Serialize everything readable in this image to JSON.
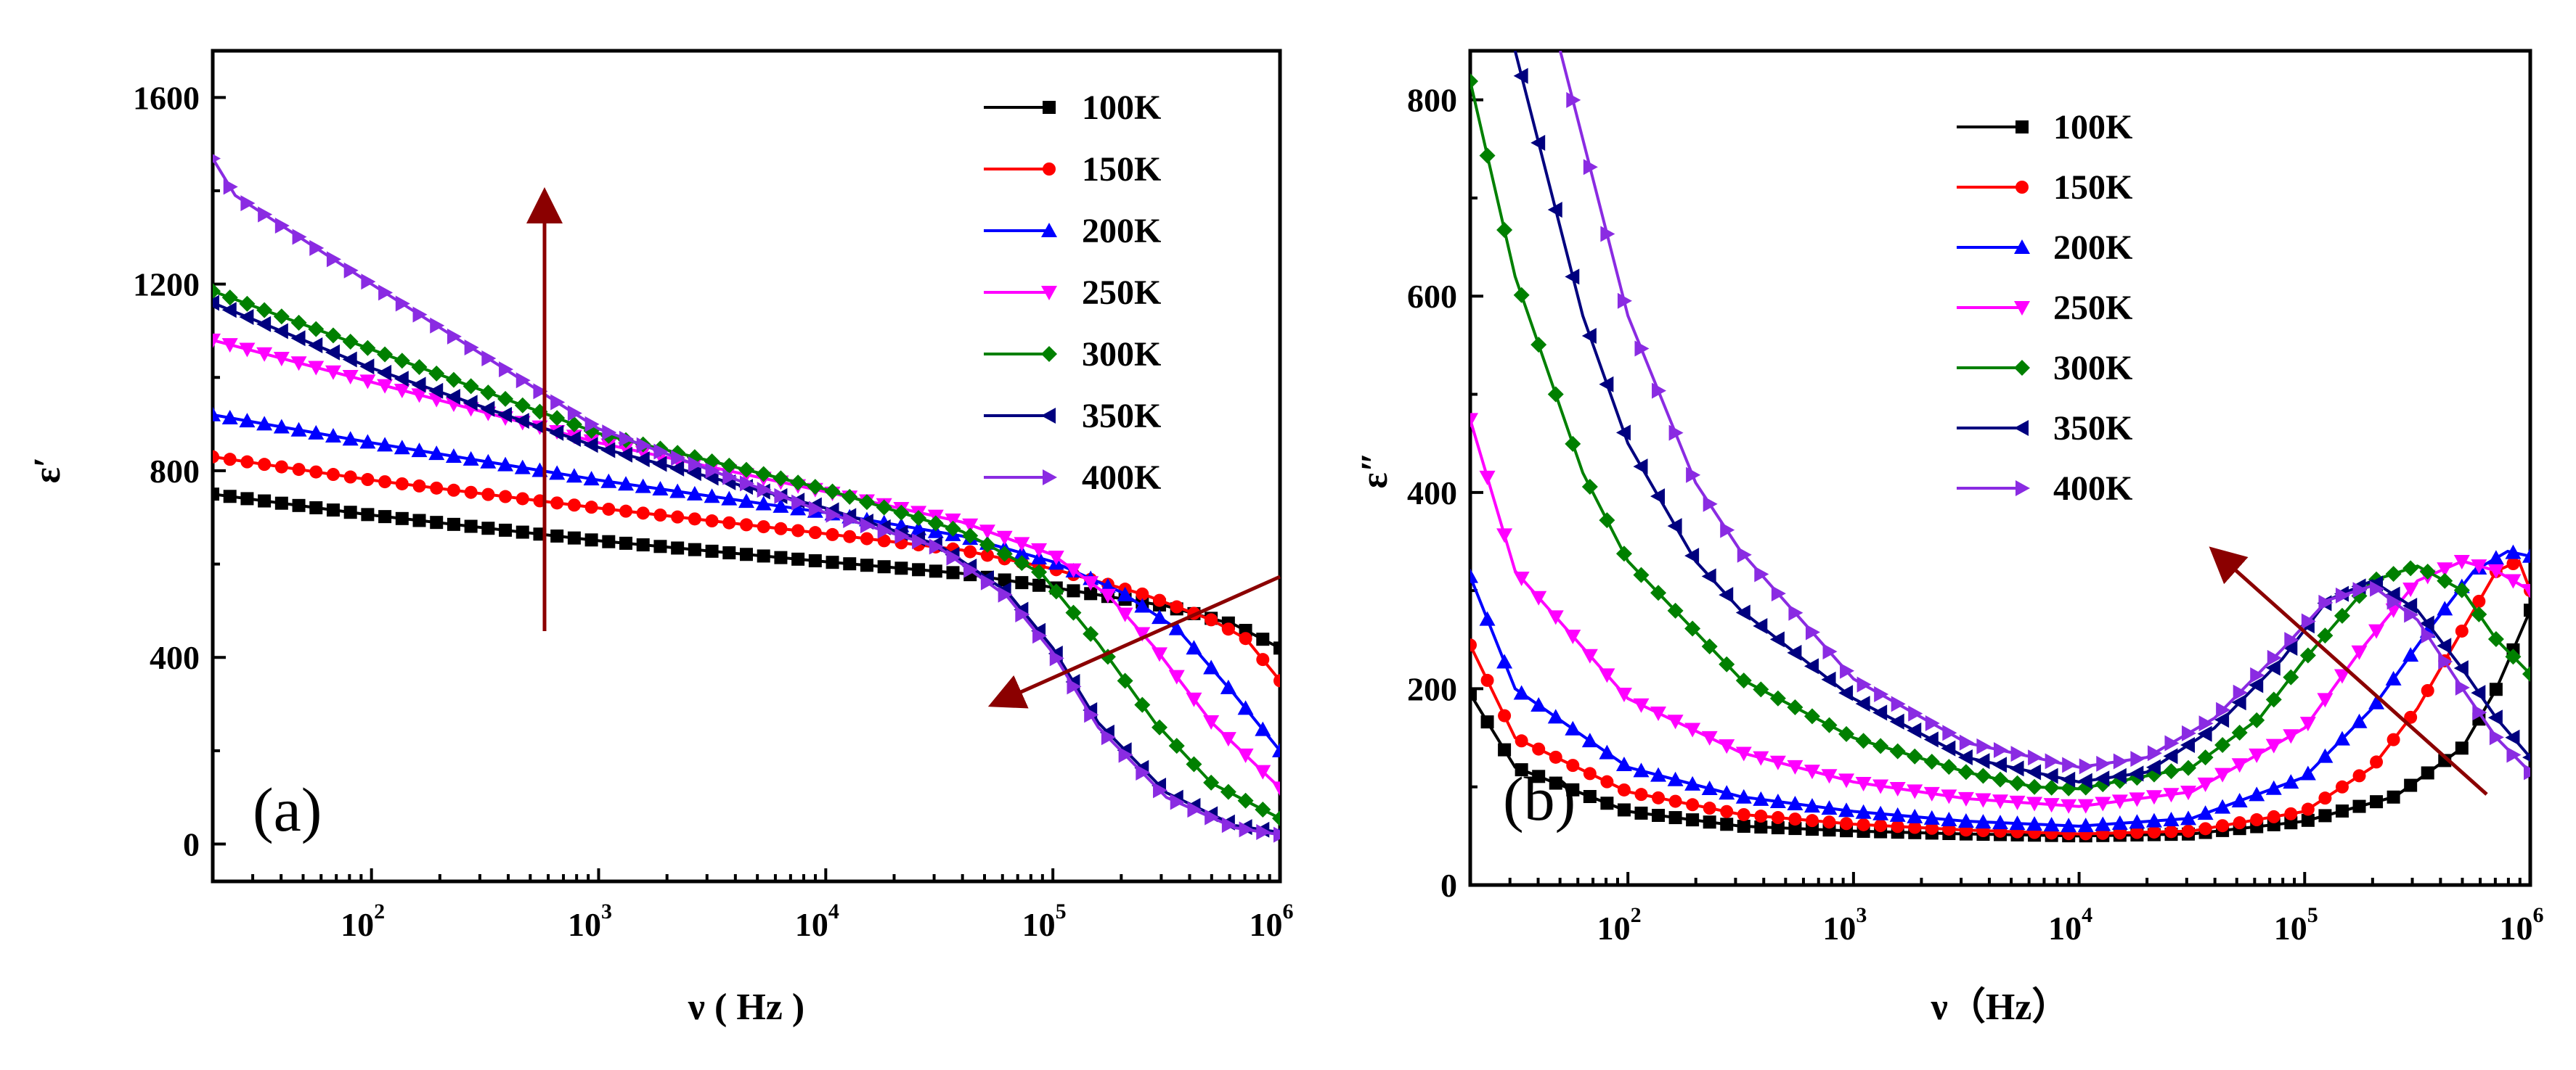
{
  "figure": {
    "panels": [
      "(a)",
      "(b)"
    ]
  },
  "chart_data": [
    {
      "type": "line",
      "panel_label": "(a)",
      "title": "",
      "xlabel": "ν ( Hz )",
      "ylabel": "ε′",
      "xscale": "log",
      "xlim": [
        20,
        1000000
      ],
      "ylim": [
        -80,
        1700
      ],
      "xticks": [
        {
          "base": "10",
          "exp": "2",
          "value": 100
        },
        {
          "base": "10",
          "exp": "3",
          "value": 1000
        },
        {
          "base": "10",
          "exp": "4",
          "value": 10000
        },
        {
          "base": "10",
          "exp": "5",
          "value": 100000
        },
        {
          "base": "10",
          "exp": "6",
          "value": 1000000
        }
      ],
      "yticks": [
        "0",
        "400",
        "800",
        "1200",
        "1600"
      ],
      "legend_position": "top-right",
      "annotations": [
        "upward arrow at ν≈650 Hz from ε′≈450 to ε′≈1400",
        "diagonal arrow from (1e6, 560) to (1.3e5, 290)"
      ],
      "series": [
        {
          "name": "100K",
          "color": "#000000",
          "marker": "square",
          "logx": [
            1.3,
            2,
            3,
            4,
            4.6,
            5,
            5.5,
            5.8,
            6
          ],
          "values": [
            750,
            705,
            650,
            605,
            580,
            550,
            510,
            470,
            420
          ]
        },
        {
          "name": "150K",
          "color": "#ff0000",
          "marker": "circle",
          "logx": [
            1.3,
            2,
            3,
            4,
            4.6,
            5,
            5.4,
            5.7,
            5.85,
            6
          ],
          "values": [
            830,
            780,
            720,
            665,
            630,
            590,
            535,
            480,
            440,
            350
          ]
        },
        {
          "name": "200K",
          "color": "#0000ff",
          "marker": "triangle-up",
          "logx": [
            1.3,
            2,
            3,
            4,
            4.6,
            5,
            5.3,
            5.55,
            5.8,
            6
          ],
          "values": [
            920,
            860,
            780,
            710,
            660,
            605,
            540,
            460,
            320,
            200
          ]
        },
        {
          "name": "250K",
          "color": "#ff00ff",
          "marker": "triangle-down",
          "logx": [
            1.3,
            2,
            3,
            4,
            4.6,
            5,
            5.25,
            5.45,
            5.7,
            6
          ],
          "values": [
            1080,
            990,
            860,
            755,
            690,
            620,
            530,
            420,
            260,
            120
          ]
        },
        {
          "name": "300K",
          "color": "#008000",
          "marker": "diamond",
          "logx": [
            1.3,
            2,
            3,
            4,
            4.6,
            4.95,
            5.2,
            5.45,
            5.7,
            6
          ],
          "values": [
            1185,
            1060,
            880,
            760,
            670,
            580,
            430,
            260,
            130,
            55
          ]
        },
        {
          "name": "350K",
          "color": "#00007f",
          "marker": "triangle-left",
          "logx": [
            1.3,
            2,
            3,
            4,
            4.5,
            4.8,
            5,
            5.2,
            5.5,
            5.8,
            6
          ],
          "values": [
            1160,
            1020,
            850,
            720,
            640,
            540,
            420,
            260,
            110,
            40,
            25
          ]
        },
        {
          "name": "400K",
          "color": "#8a2be2",
          "marker": "triangle-right",
          "logx": [
            1.3,
            1.4,
            2,
            3,
            4,
            4.5,
            4.8,
            5,
            5.2,
            5.5,
            5.8,
            6
          ],
          "values": [
            1470,
            1390,
            1200,
            890,
            710,
            635,
            530,
            410,
            250,
            100,
            35,
            20
          ]
        }
      ]
    },
    {
      "type": "line",
      "panel_label": "(b)",
      "title": "",
      "xlabel": "ν（Hz）",
      "ylabel": "ε″",
      "xscale": "log",
      "xlim": [
        20,
        1000000
      ],
      "ylim": [
        0,
        850
      ],
      "xticks": [
        {
          "base": "10",
          "exp": "2",
          "value": 100
        },
        {
          "base": "10",
          "exp": "3",
          "value": 1000
        },
        {
          "base": "10",
          "exp": "4",
          "value": 10000
        },
        {
          "base": "10",
          "exp": "5",
          "value": 100000
        },
        {
          "base": "10",
          "exp": "6",
          "value": 1000000
        }
      ],
      "yticks": [
        "0",
        "200",
        "400",
        "600",
        "800"
      ],
      "legend_position": "top-center",
      "annotations": [
        "diagonal arrow from (1e6, 100) to (3e4, 350)"
      ],
      "series": [
        {
          "name": "100K",
          "color": "#000000",
          "marker": "square",
          "logx": [
            1.3,
            1.5,
            2,
            2.5,
            3,
            3.5,
            4,
            4.5,
            5,
            5.4,
            5.7,
            5.85,
            6
          ],
          "values": [
            195,
            120,
            75,
            60,
            55,
            52,
            50,
            52,
            65,
            90,
            140,
            200,
            280
          ]
        },
        {
          "name": "150K",
          "color": "#ff0000",
          "marker": "circle",
          "logx": [
            1.3,
            1.5,
            2,
            2.5,
            3,
            3.5,
            4,
            4.5,
            5,
            5.3,
            5.5,
            5.7,
            5.85,
            5.95,
            6
          ],
          "values": [
            245,
            150,
            95,
            72,
            62,
            56,
            52,
            55,
            75,
            120,
            180,
            260,
            320,
            330,
            300
          ]
        },
        {
          "name": "200K",
          "color": "#0000ff",
          "marker": "triangle-up",
          "logx": [
            1.3,
            1.5,
            2,
            2.5,
            3,
            3.5,
            4,
            4.5,
            5,
            5.3,
            5.55,
            5.75,
            5.9,
            6
          ],
          "values": [
            315,
            200,
            120,
            90,
            75,
            65,
            60,
            68,
            110,
            180,
            260,
            320,
            340,
            335
          ]
        },
        {
          "name": "250K",
          "color": "#ff00ff",
          "marker": "triangle-down",
          "logx": [
            1.3,
            1.5,
            2,
            2.5,
            3,
            3.5,
            4,
            4.5,
            5,
            5.25,
            5.5,
            5.7,
            5.85,
            6
          ],
          "values": [
            475,
            320,
            190,
            135,
            105,
            88,
            80,
            95,
            160,
            240,
            310,
            330,
            320,
            300
          ]
        },
        {
          "name": "300K",
          "color": "#008000",
          "marker": "diamond",
          "logx": [
            1.3,
            1.5,
            1.8,
            2,
            2.5,
            3,
            3.5,
            3.8,
            4,
            4.5,
            4.8,
            5,
            5.3,
            5.5,
            5.7,
            5.85,
            6
          ],
          "values": [
            820,
            620,
            420,
            330,
            210,
            150,
            115,
            100,
            98,
            120,
            170,
            230,
            310,
            325,
            300,
            250,
            215
          ]
        },
        {
          "name": "350K",
          "color": "#00007f",
          "marker": "triangle-left",
          "logx": [
            1.5,
            1.6,
            1.8,
            2,
            2.3,
            2.5,
            3,
            3.5,
            4,
            4.3,
            4.6,
            4.9,
            5.1,
            5.3,
            5.5,
            5.7,
            5.85,
            6
          ],
          "values": [
            850,
            760,
            580,
            450,
            330,
            280,
            190,
            130,
            105,
            115,
            160,
            230,
            290,
            310,
            280,
            220,
            170,
            130
          ]
        },
        {
          "name": "400K",
          "color": "#8a2be2",
          "marker": "triangle-right",
          "logx": [
            1.7,
            1.8,
            2,
            2.3,
            2.5,
            3,
            3.5,
            4,
            4.3,
            4.6,
            4.9,
            5.1,
            5.3,
            5.5,
            5.7,
            5.85,
            6
          ],
          "values": [
            850,
            760,
            580,
            410,
            340,
            210,
            145,
            120,
            130,
            170,
            240,
            290,
            305,
            270,
            200,
            150,
            115
          ]
        }
      ]
    }
  ]
}
